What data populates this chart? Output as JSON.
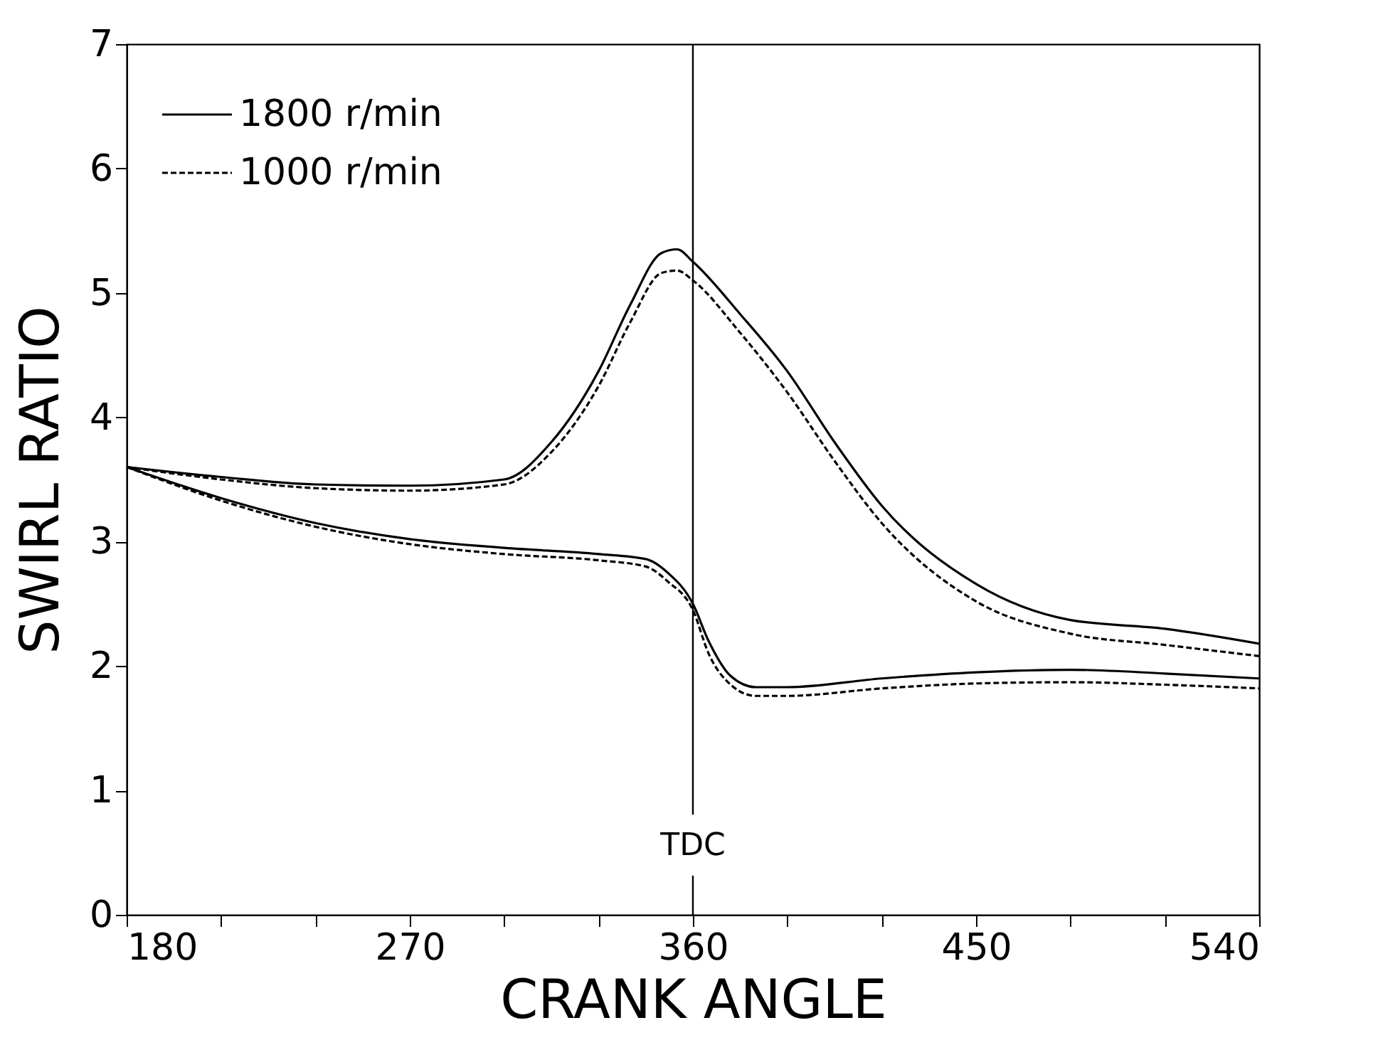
{
  "chart_data": {
    "type": "line",
    "xlabel": "CRANK ANGLE",
    "ylabel": "SWIRL RATIO",
    "xlim": [
      180,
      540
    ],
    "xticks": [
      180,
      {
        "value": 210,
        "label": null
      },
      {
        "value": 240,
        "label": null
      },
      270,
      {
        "value": 300,
        "label": null
      },
      {
        "value": 330,
        "label": null
      },
      360,
      {
        "value": 390,
        "label": null
      },
      {
        "value": 420,
        "label": null
      },
      450,
      {
        "value": 480,
        "label": null
      },
      {
        "value": 510,
        "label": null
      },
      540
    ],
    "ylim": [
      0,
      7
    ],
    "yticks": [
      0,
      1,
      2,
      3,
      4,
      5,
      6,
      7
    ],
    "grid": false,
    "legend": "top left",
    "marker": "none",
    "ref_lines": [
      {
        "axis": "x",
        "value": 360,
        "label": "TDC"
      }
    ],
    "series": [
      {
        "name": "1800 r/min",
        "color": "#000000",
        "line_style": "solid",
        "x": [
          180,
          210,
          240,
          270,
          300,
          315,
          330,
          340,
          350,
          355,
          360,
          375,
          390,
          405,
          420,
          450,
          480,
          510,
          540
        ],
        "values": [
          3.6,
          3.52,
          3.46,
          3.45,
          3.5,
          3.8,
          4.37,
          4.9,
          5.32,
          5.35,
          5.25,
          4.83,
          4.37,
          3.8,
          3.29,
          2.66,
          2.37,
          2.3,
          2.18
        ]
      },
      {
        "name": "1000 r/min",
        "color": "#000000",
        "line_style": "dashed",
        "x": [
          180,
          210,
          240,
          270,
          300,
          315,
          330,
          340,
          350,
          355,
          360,
          375,
          390,
          405,
          420,
          450,
          480,
          510,
          540
        ],
        "values": [
          3.6,
          3.5,
          3.43,
          3.41,
          3.46,
          3.72,
          4.25,
          4.76,
          5.16,
          5.18,
          5.1,
          4.68,
          4.2,
          3.65,
          3.15,
          2.52,
          2.26,
          2.17,
          2.08
        ]
      },
      {
        "color": "#000000",
        "line_style": "solid",
        "x": [
          180,
          210,
          240,
          270,
          300,
          330,
          345,
          352,
          360,
          365,
          372,
          380,
          390,
          420,
          450,
          480,
          510,
          540
        ],
        "values": [
          3.6,
          3.35,
          3.15,
          3.02,
          2.95,
          2.9,
          2.86,
          2.75,
          2.5,
          2.2,
          1.92,
          1.83,
          1.83,
          1.9,
          1.95,
          1.97,
          1.94,
          1.9
        ]
      },
      {
        "color": "#000000",
        "line_style": "dashed",
        "x": [
          180,
          210,
          240,
          270,
          300,
          330,
          345,
          352,
          360,
          365,
          372,
          380,
          390,
          420,
          450,
          480,
          510,
          540
        ],
        "values": [
          3.6,
          3.33,
          3.12,
          2.98,
          2.9,
          2.85,
          2.8,
          2.68,
          2.45,
          2.1,
          1.85,
          1.76,
          1.76,
          1.82,
          1.86,
          1.87,
          1.85,
          1.82
        ]
      }
    ]
  }
}
